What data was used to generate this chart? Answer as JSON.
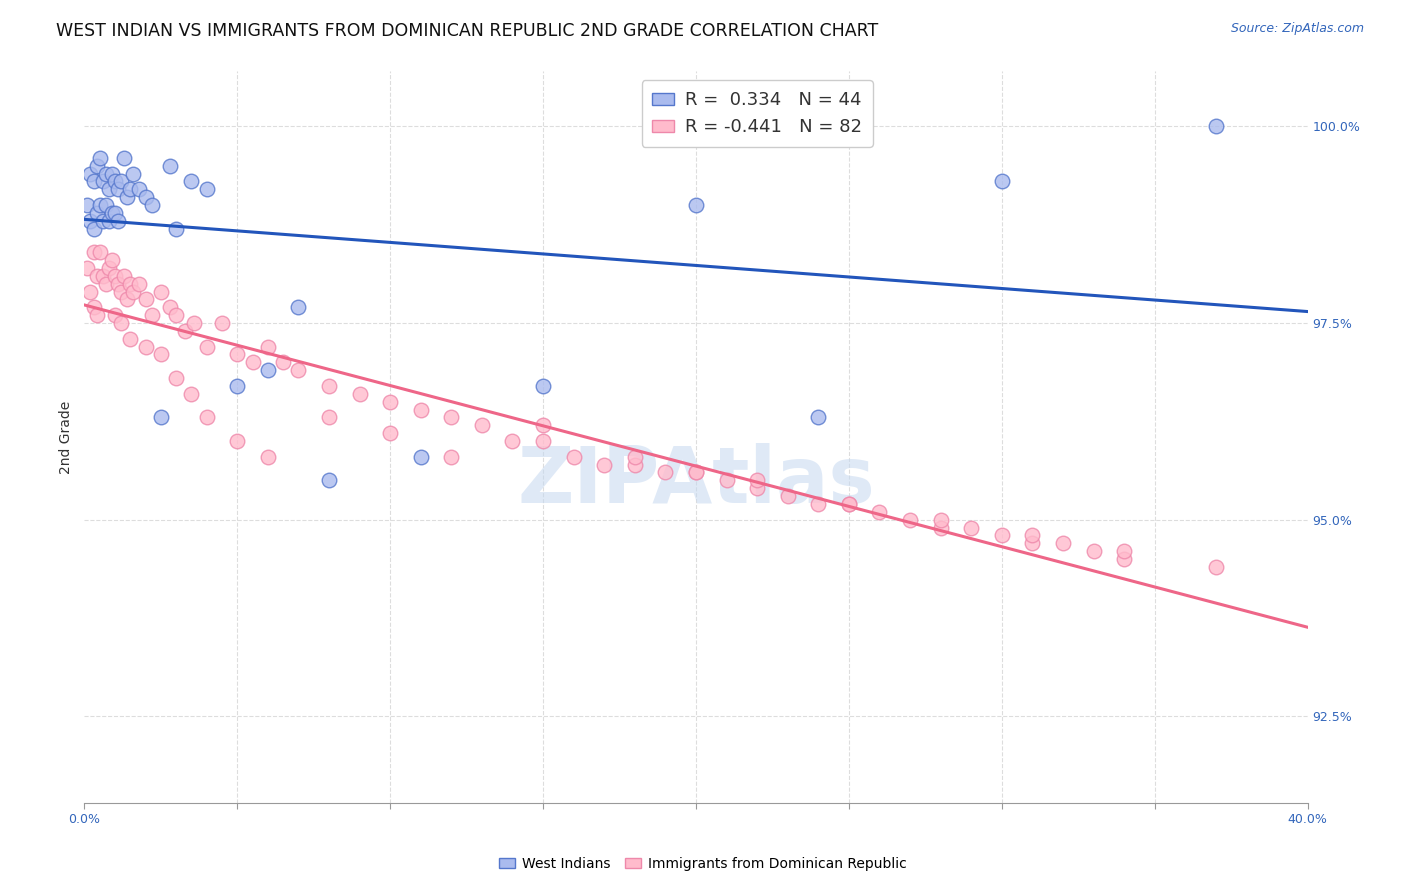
{
  "title": "WEST INDIAN VS IMMIGRANTS FROM DOMINICAN REPUBLIC 2ND GRADE CORRELATION CHART",
  "source": "Source: ZipAtlas.com",
  "ylabel": "2nd Grade",
  "ylabel_right_labels": [
    "100.0%",
    "97.5%",
    "95.0%",
    "92.5%"
  ],
  "ylabel_right_values": [
    1.0,
    0.975,
    0.95,
    0.925
  ],
  "xlim": [
    0.0,
    0.4
  ],
  "ylim": [
    0.914,
    1.007
  ],
  "watermark": "ZIPAtlas",
  "blue_line_color": "#2255bb",
  "pink_line_color": "#ee6688",
  "blue_marker_face": "#aabbee",
  "blue_marker_edge": "#5577cc",
  "pink_marker_face": "#ffbbcc",
  "pink_marker_edge": "#ee88aa",
  "grid_color": "#dddddd",
  "background_color": "#ffffff",
  "title_fontsize": 12.5,
  "source_fontsize": 9,
  "axis_label_fontsize": 10,
  "tick_fontsize": 9,
  "legend_fontsize": 13,
  "west_indian_x": [
    0.001,
    0.002,
    0.002,
    0.003,
    0.003,
    0.004,
    0.004,
    0.005,
    0.005,
    0.006,
    0.006,
    0.007,
    0.007,
    0.008,
    0.008,
    0.009,
    0.009,
    0.01,
    0.01,
    0.011,
    0.011,
    0.012,
    0.013,
    0.014,
    0.015,
    0.016,
    0.018,
    0.02,
    0.022,
    0.025,
    0.028,
    0.03,
    0.035,
    0.04,
    0.05,
    0.06,
    0.07,
    0.08,
    0.11,
    0.15,
    0.2,
    0.24,
    0.3,
    0.37
  ],
  "west_indian_y": [
    0.99,
    0.994,
    0.988,
    0.993,
    0.987,
    0.995,
    0.989,
    0.996,
    0.99,
    0.993,
    0.988,
    0.994,
    0.99,
    0.992,
    0.988,
    0.994,
    0.989,
    0.993,
    0.989,
    0.992,
    0.988,
    0.993,
    0.996,
    0.991,
    0.992,
    0.994,
    0.992,
    0.991,
    0.99,
    0.963,
    0.995,
    0.987,
    0.993,
    0.992,
    0.967,
    0.969,
    0.977,
    0.955,
    0.958,
    0.967,
    0.99,
    0.963,
    0.993,
    1.0
  ],
  "dominican_x": [
    0.001,
    0.002,
    0.003,
    0.003,
    0.004,
    0.004,
    0.005,
    0.006,
    0.007,
    0.008,
    0.009,
    0.01,
    0.011,
    0.012,
    0.013,
    0.014,
    0.015,
    0.016,
    0.018,
    0.02,
    0.022,
    0.025,
    0.028,
    0.03,
    0.033,
    0.036,
    0.04,
    0.045,
    0.05,
    0.055,
    0.06,
    0.065,
    0.07,
    0.08,
    0.09,
    0.1,
    0.11,
    0.12,
    0.13,
    0.14,
    0.15,
    0.16,
    0.17,
    0.18,
    0.19,
    0.2,
    0.21,
    0.22,
    0.23,
    0.24,
    0.25,
    0.26,
    0.27,
    0.28,
    0.29,
    0.3,
    0.31,
    0.32,
    0.33,
    0.34,
    0.01,
    0.012,
    0.015,
    0.02,
    0.025,
    0.03,
    0.035,
    0.04,
    0.05,
    0.06,
    0.08,
    0.1,
    0.12,
    0.15,
    0.18,
    0.2,
    0.22,
    0.25,
    0.28,
    0.31,
    0.34,
    0.37
  ],
  "dominican_y": [
    0.982,
    0.979,
    0.984,
    0.977,
    0.981,
    0.976,
    0.984,
    0.981,
    0.98,
    0.982,
    0.983,
    0.981,
    0.98,
    0.979,
    0.981,
    0.978,
    0.98,
    0.979,
    0.98,
    0.978,
    0.976,
    0.979,
    0.977,
    0.976,
    0.974,
    0.975,
    0.972,
    0.975,
    0.971,
    0.97,
    0.972,
    0.97,
    0.969,
    0.967,
    0.966,
    0.965,
    0.964,
    0.963,
    0.962,
    0.96,
    0.96,
    0.958,
    0.957,
    0.957,
    0.956,
    0.956,
    0.955,
    0.954,
    0.953,
    0.952,
    0.952,
    0.951,
    0.95,
    0.949,
    0.949,
    0.948,
    0.947,
    0.947,
    0.946,
    0.945,
    0.976,
    0.975,
    0.973,
    0.972,
    0.971,
    0.968,
    0.966,
    0.963,
    0.96,
    0.958,
    0.963,
    0.961,
    0.958,
    0.962,
    0.958,
    0.956,
    0.955,
    0.952,
    0.95,
    0.948,
    0.946,
    0.944
  ]
}
